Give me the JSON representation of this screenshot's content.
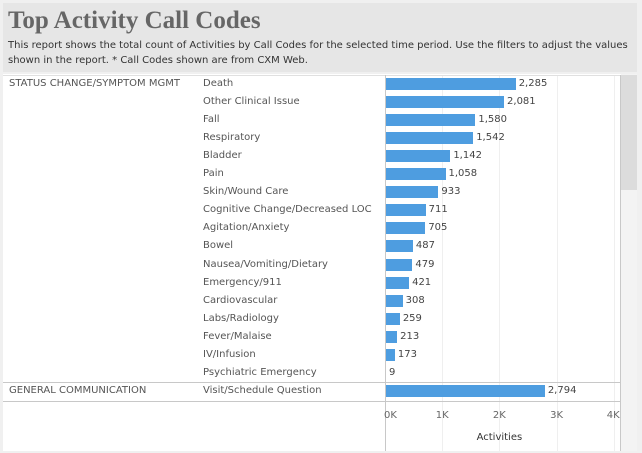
{
  "header": {
    "title": "Top Activity Call Codes",
    "subtitle": "This report shows the total count of Activities by Call Codes for the selected time period. Use the filters to adjust the values shown in the report. * Call Codes shown are from CXM Web."
  },
  "colors": {
    "bar": "#4e9de0",
    "header_bg": "#e6e6e6",
    "title": "#666666"
  },
  "chart_data": {
    "type": "bar",
    "orientation": "horizontal",
    "xlabel": "Activities",
    "xlim": [
      0,
      4000
    ],
    "x_ticks": [
      "0K",
      "1K",
      "2K",
      "3K",
      "4K"
    ],
    "grid": true,
    "groups": [
      {
        "name": "STATUS CHANGE/SYMPTOM MGMT",
        "categories": [
          "Death",
          "Other Clinical Issue",
          "Fall",
          "Respiratory",
          "Bladder",
          "Pain",
          "Skin/Wound Care",
          "Cognitive Change/Decreased LOC",
          "Agitation/Anxiety",
          "Bowel",
          "Nausea/Vomiting/Dietary",
          "Emergency/911",
          "Cardiovascular",
          "Labs/Radiology",
          "Fever/Malaise",
          "IV/Infusion",
          "Psychiatric Emergency"
        ],
        "values": [
          2285,
          2081,
          1580,
          1542,
          1142,
          1058,
          933,
          711,
          705,
          487,
          479,
          421,
          308,
          259,
          213,
          173,
          9
        ],
        "labels": [
          "2,285",
          "2,081",
          "1,580",
          "1,542",
          "1,142",
          "1,058",
          "933",
          "711",
          "705",
          "487",
          "479",
          "421",
          "308",
          "259",
          "213",
          "173",
          "9"
        ]
      },
      {
        "name": "GENERAL COMMUNICATION",
        "categories": [
          "Visit/Schedule Question"
        ],
        "values": [
          2794
        ],
        "labels": [
          "2,794"
        ]
      }
    ]
  }
}
